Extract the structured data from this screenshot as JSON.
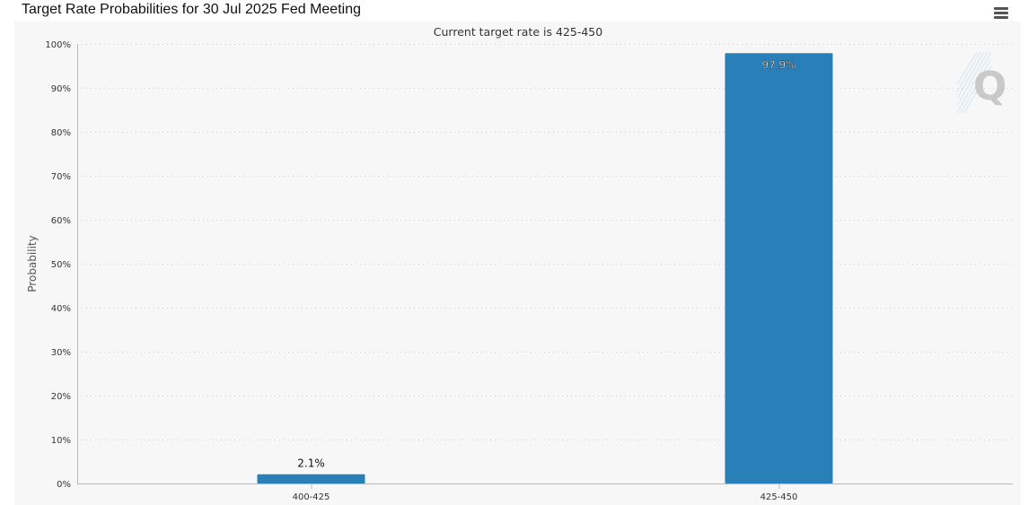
{
  "page": {
    "title": "Target Rate Probabilities for 30 Jul 2025 Fed Meeting"
  },
  "toolbar": {
    "menu_icon": "hamburger-menu-icon"
  },
  "watermark": {
    "icon": "q-logo-icon",
    "letter": "Q"
  },
  "colors": {
    "bar": "#2980b9",
    "background": "#f7f7f7",
    "grid": "#cccccc"
  },
  "chart_data": {
    "type": "bar",
    "title": "",
    "subtitle": "Current target rate is 425-450",
    "xlabel": "",
    "ylabel": "Probability",
    "categories": [
      "400-425",
      "425-450"
    ],
    "values": [
      2.1,
      97.9
    ],
    "value_labels": [
      "2.1%",
      "97.9%"
    ],
    "ylim": [
      0,
      100
    ],
    "yticks": [
      0,
      10,
      20,
      30,
      40,
      50,
      60,
      70,
      80,
      90,
      100
    ],
    "ytick_labels": [
      "0%",
      "10%",
      "20%",
      "30%",
      "40%",
      "50%",
      "60%",
      "70%",
      "80%",
      "90%",
      "100%"
    ],
    "grid": true,
    "legend": "none"
  }
}
